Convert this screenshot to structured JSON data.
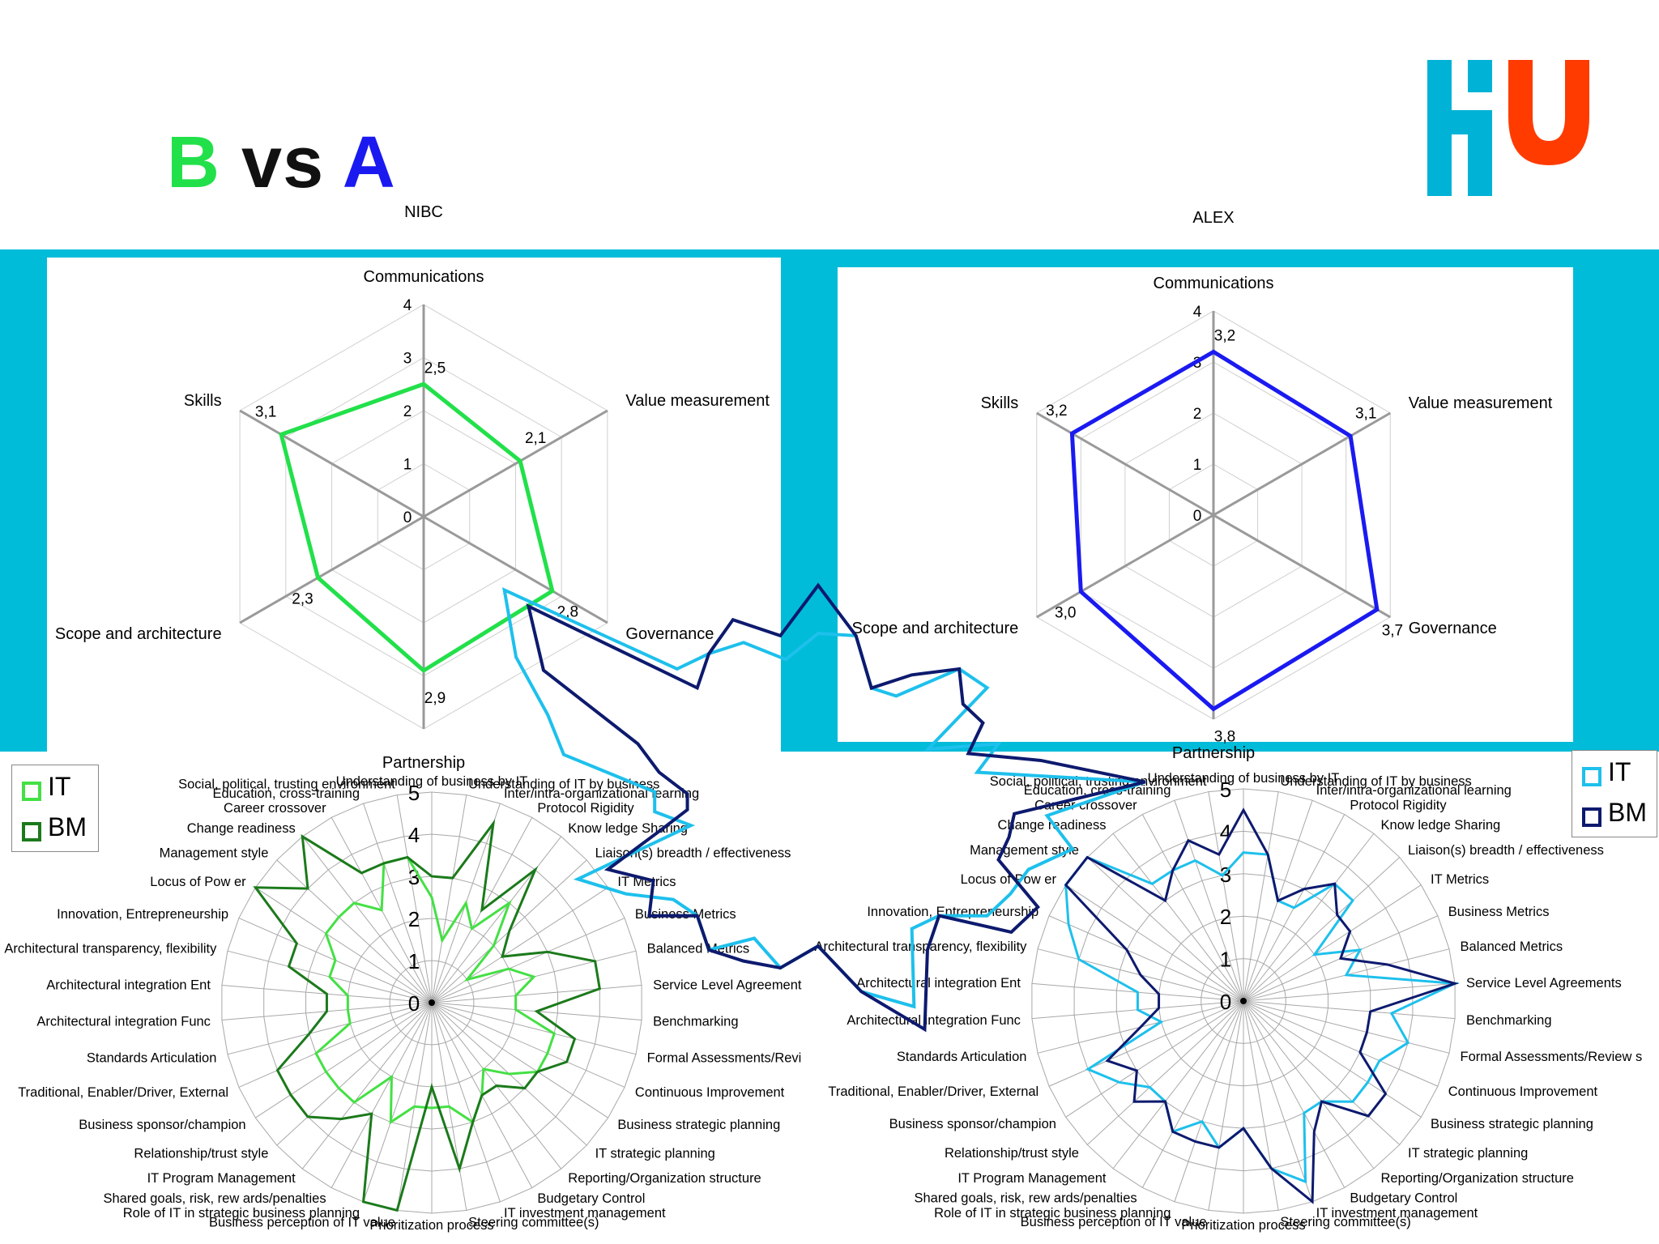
{
  "title": {
    "b": "B",
    "vs": "vs",
    "a": "A"
  },
  "logo": {
    "name": "HU logo",
    "color_primary": "#00b2d6",
    "color_accent": "#ff3b00"
  },
  "colors": {
    "band": "#00bcd9",
    "b_line": "#22e04a",
    "a_line": "#1a1af0",
    "it_light_green": "#44e044",
    "bm_dark_green": "#1b7a1b",
    "it_cyan": "#1ec0ec",
    "bm_navy": "#0d1a6e"
  },
  "chart_data": [
    {
      "type": "radar",
      "title": "NIBC",
      "axes": [
        "Communications",
        "Value measurement",
        "Governance",
        "Partnership",
        "Scope and architecture",
        "Skills"
      ],
      "tick_labels": [
        "0",
        "1",
        "2",
        "3",
        "4"
      ],
      "range": [
        0,
        4
      ],
      "values": [
        2.5,
        2.1,
        2.8,
        2.9,
        2.3,
        3.1
      ],
      "value_labels": [
        "2,5",
        "2,1",
        "2,8",
        "2,9",
        "2,3",
        "3,1"
      ],
      "series_color": "#22e04a"
    },
    {
      "type": "radar",
      "title": "ALEX",
      "axes": [
        "Communications",
        "Value measurement",
        "Governance",
        "Partnership",
        "Scope and architecture",
        "Skills"
      ],
      "tick_labels": [
        "0",
        "1",
        "2",
        "3",
        "4"
      ],
      "range": [
        0,
        4
      ],
      "values": [
        3.2,
        3.1,
        3.7,
        3.8,
        3.0,
        3.2
      ],
      "value_labels": [
        "3,2",
        "3,1",
        "3,7",
        "3,8",
        "3,0",
        "3,2"
      ],
      "series_color": "#1a1af0"
    },
    {
      "type": "radar",
      "range": [
        0,
        5
      ],
      "tick_labels": [
        "0",
        "1",
        "2",
        "3",
        "4",
        "5"
      ],
      "legend": {
        "placement": "left",
        "entries": [
          "IT",
          "BM"
        ]
      },
      "axes": [
        "Understanding of business by IT",
        "Understanding of IT by business",
        "Inter/intra-organizational learning",
        "Protocol Rigidity",
        "Know ledge Sharing",
        "Liaison(s) breadth / effectiveness",
        "IT Metrics",
        "Business Metrics",
        "Balanced Metrics",
        "Service Level Agreement",
        "Benchmarking",
        "Formal Assessments/Revi",
        "Continuous Improvement",
        "Business strategic planning",
        "IT strategic planning",
        "Reporting/Organization structure",
        "Budgetary Control",
        "IT investment management",
        "Steering committee(s)",
        "Prioritization process",
        "Business perception of IT value",
        "Role of IT in strategic business planning",
        "Shared goals, risk, rew ards/penalties",
        "IT Program Management",
        "Relationship/trust style",
        "Business sponsor/champion",
        "Traditional, Enabler/Driver, External",
        "Standards Articulation",
        "Architectural integration Func",
        "Architectural integration Ent",
        "Architectural transparency, flexibility",
        "Innovation, Entrepreneurship",
        "Locus of Pow er",
        "Management style",
        "Change readiness",
        "Career crossover",
        "Education, cross-training",
        "Social, political, trusting environment"
      ],
      "series": [
        {
          "name": "IT",
          "color": "#44e044",
          "values": [
            2.5,
            1.5,
            2.5,
            2.0,
            3.0,
            2.0,
            1.0,
            2.0,
            2.5,
            2.0,
            2.0,
            3.0,
            3.0,
            3.0,
            2.5,
            2.0,
            2.5,
            3.0,
            2.5,
            2.5,
            2.5,
            3.0,
            2.0,
            3.0,
            3.0,
            3.0,
            3.0,
            2.0,
            2.0,
            2.0,
            2.5,
            2.5,
            3.0,
            3.0,
            3.0,
            2.5,
            3.5,
            3.5
          ]
        },
        {
          "name": "BM",
          "color": "#1b7a1b",
          "values": [
            3.0,
            3.0,
            4.5,
            2.5,
            4.0,
            2.5,
            2.0,
            3.0,
            4.0,
            4.0,
            2.5,
            3.5,
            3.5,
            3.0,
            3.0,
            2.5,
            2.5,
            3.0,
            4.0,
            2.0,
            5.0,
            5.0,
            3.0,
            3.5,
            4.0,
            4.0,
            4.0,
            3.0,
            2.5,
            2.5,
            3.5,
            3.5,
            5.0,
            4.0,
            5.0,
            3.5,
            3.5,
            3.5
          ]
        }
      ]
    },
    {
      "type": "radar",
      "range": [
        0,
        5
      ],
      "tick_labels": [
        "0",
        "1",
        "2",
        "3",
        "4",
        "5"
      ],
      "legend": {
        "placement": "right",
        "entries": [
          "IT",
          "BM"
        ]
      },
      "axes": [
        "Understanding of business by IT",
        "Understanding of IT by business",
        "Inter/intra-organizational learning",
        "Protocol Rigidity",
        "Know ledge Sharing",
        "Liaison(s) breadth / effectiveness",
        "IT Metrics",
        "Business Metrics",
        "Balanced Metrics",
        "Service Level Agreements",
        "Benchmarking",
        "Formal Assessments/Review s",
        "Continuous Improvement",
        "Business strategic planning",
        "IT strategic planning",
        "Reporting/Organization structure",
        "Budgetary Control",
        "IT investment management",
        "Steering committee(s)",
        "Prioritization process",
        "Business perception of IT value",
        "Role of IT in strategic business planning",
        "Shared goals, risk, rew ards/penalties",
        "IT Program Management",
        "Relationship/trust style",
        "Business sponsor/champion",
        "Traditional, Enabler/Driver, External",
        "Standards Articulation",
        "Architectural integration Func",
        "Architectural integration Ent",
        "Architectural transparency, flexibility",
        "Innovation, Entrepreneurship",
        "Locus of Pow er",
        "Management style",
        "Change readiness",
        "Career crossover",
        "Education, cross-training",
        "Social, political, trusting environment"
      ],
      "series": [
        {
          "name": "IT",
          "color": "#1ec0ec",
          "values": [
            3.5,
            3.5,
            2.5,
            2.5,
            3.5,
            3.5,
            2.0,
            3.0,
            2.5,
            5.0,
            3.5,
            4.0,
            3.5,
            3.5,
            3.5,
            3.0,
            3.0,
            4.5,
            4.0,
            3.0,
            3.5,
            3.0,
            3.5,
            3.0,
            3.0,
            3.5,
            4.0,
            2.0,
            2.5,
            2.5,
            4.0,
            4.5,
            5.5,
            6.5,
            3.5,
            3.5,
            3.5,
            3.0
          ]
        },
        {
          "name": "BM",
          "color": "#0d1a6e",
          "values": [
            4.5,
            3.5,
            2.5,
            3.0,
            3.5,
            3.0,
            3.0,
            2.5,
            3.5,
            5.0,
            3.0,
            3.0,
            3.0,
            4.0,
            4.0,
            3.0,
            3.5,
            5.0,
            4.0,
            3.0,
            3.5,
            3.5,
            3.5,
            3.0,
            3.5,
            3.0,
            3.5,
            2.5,
            2.0,
            2.0,
            2.5,
            3.0,
            5.0,
            6.0,
            3.0,
            3.5,
            4.0,
            3.5
          ]
        }
      ]
    }
  ],
  "floating_overlay": {
    "type": "radar",
    "series": [
      {
        "name": "IT",
        "color": "#1ec0ec",
        "values": [
          3.5,
          3.5,
          2.5,
          2.5,
          3.5,
          3.5,
          2.0,
          3.0,
          2.5,
          5.0,
          3.5,
          4.0,
          3.5,
          3.5,
          3.5,
          3.0,
          3.0,
          4.5,
          4.0,
          3.0,
          3.5,
          3.0,
          3.5,
          3.0,
          3.0,
          3.5,
          4.0,
          2.0,
          2.5,
          2.5,
          4.0,
          4.5,
          5.5,
          6.5,
          3.5,
          3.5,
          3.5,
          3.0
        ]
      },
      {
        "name": "BM",
        "color": "#0d1a6e",
        "values": [
          4.5,
          3.5,
          2.5,
          3.0,
          3.5,
          3.0,
          3.0,
          2.5,
          3.5,
          5.0,
          3.0,
          3.0,
          3.0,
          4.0,
          4.0,
          3.0,
          3.5,
          5.0,
          4.0,
          3.0,
          3.5,
          3.5,
          3.5,
          3.0,
          3.5,
          3.0,
          3.5,
          2.5,
          2.0,
          2.0,
          2.5,
          3.0,
          5.0,
          6.0,
          3.0,
          3.5,
          4.0,
          3.5
        ]
      }
    ]
  }
}
